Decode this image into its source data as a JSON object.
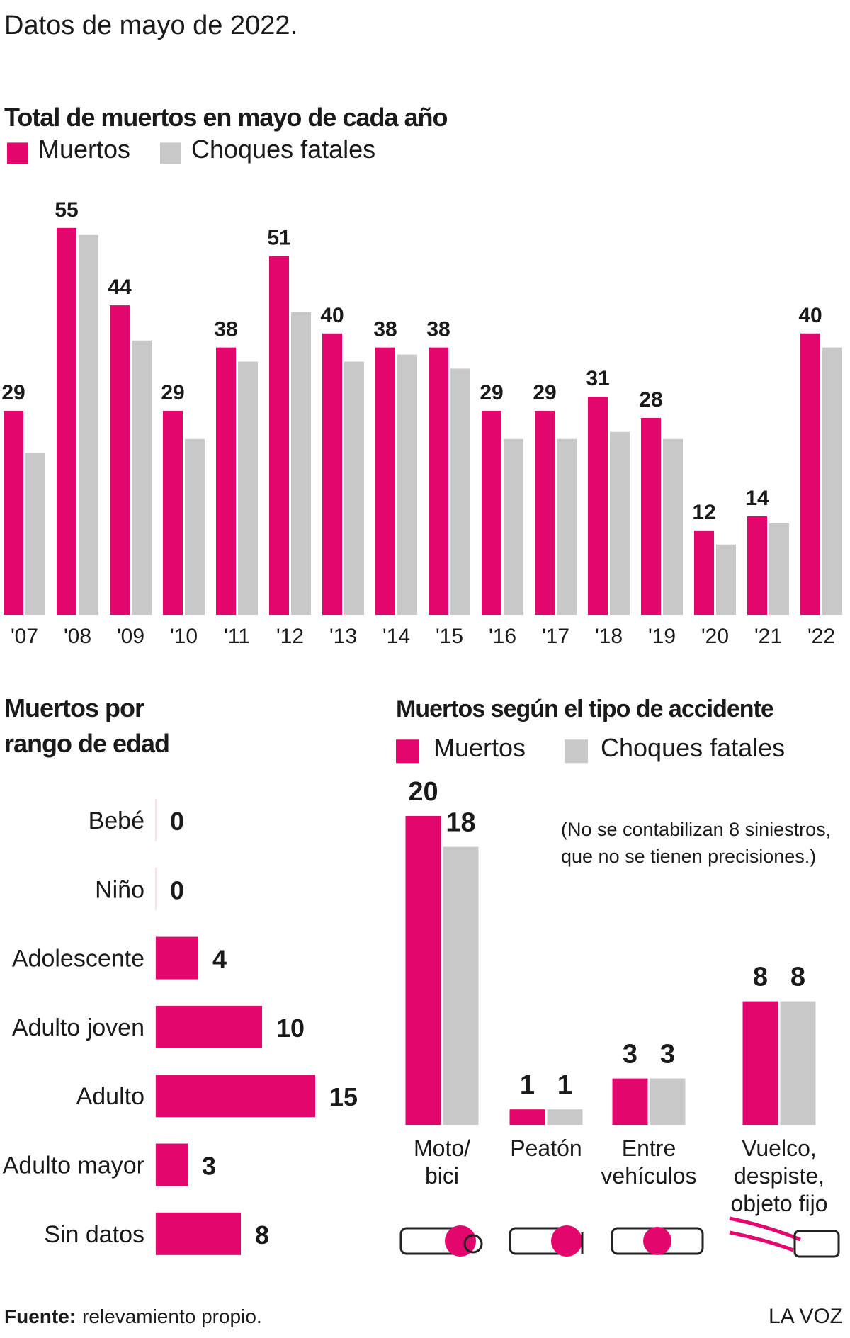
{
  "header": {
    "title": "Datos de mayo de 2022."
  },
  "chart_data": [
    {
      "type": "bar",
      "title": "Total de muertos en mayo de cada año",
      "categories": [
        "'07",
        "'08",
        "'09",
        "'10",
        "'11",
        "'12",
        "'13",
        "'14",
        "'15",
        "'16",
        "'17",
        "'18",
        "'19",
        "'20",
        "'21",
        "'22"
      ],
      "series": [
        {
          "name": "Muertos",
          "color": "#e2066d",
          "show_values": true,
          "values": [
            29,
            55,
            44,
            29,
            38,
            51,
            40,
            38,
            38,
            29,
            29,
            31,
            28,
            12,
            14,
            40
          ]
        },
        {
          "name": "Choques fatales",
          "color": "#c8c8c8",
          "show_values": false,
          "values": [
            23,
            54,
            39,
            25,
            36,
            43,
            36,
            37,
            35,
            25,
            25,
            26,
            25,
            10,
            13,
            38
          ]
        }
      ]
    },
    {
      "type": "hbar",
      "title": "Muertos por\nrango de edad",
      "categories": [
        "Bebé",
        "Niño",
        "Adolescente",
        "Adulto joven",
        "Adulto",
        "Adulto mayor",
        "Sin datos"
      ],
      "values": [
        0,
        0,
        4,
        10,
        15,
        3,
        8
      ],
      "color": "#e2066d"
    },
    {
      "type": "bar",
      "title": "Muertos según el tipo de accidente",
      "note": "(No se contabilizan 8 siniestros,\nque no se tienen precisiones.)",
      "categories": [
        "Moto/\nbici",
        "Peatón",
        "Entre\nvehículos",
        "Vuelco,\ndespiste,\nobjeto fijo"
      ],
      "series": [
        {
          "name": "Muertos",
          "color": "#e2066d",
          "show_values": true,
          "values": [
            20,
            1,
            3,
            8
          ]
        },
        {
          "name": "Choques fatales",
          "color": "#c8c8c8",
          "show_values": true,
          "values": [
            18,
            1,
            3,
            8
          ]
        }
      ]
    }
  ],
  "footer": {
    "source_label": "Fuente:",
    "source": "relevamiento propio.",
    "brand": "LA VOZ"
  }
}
